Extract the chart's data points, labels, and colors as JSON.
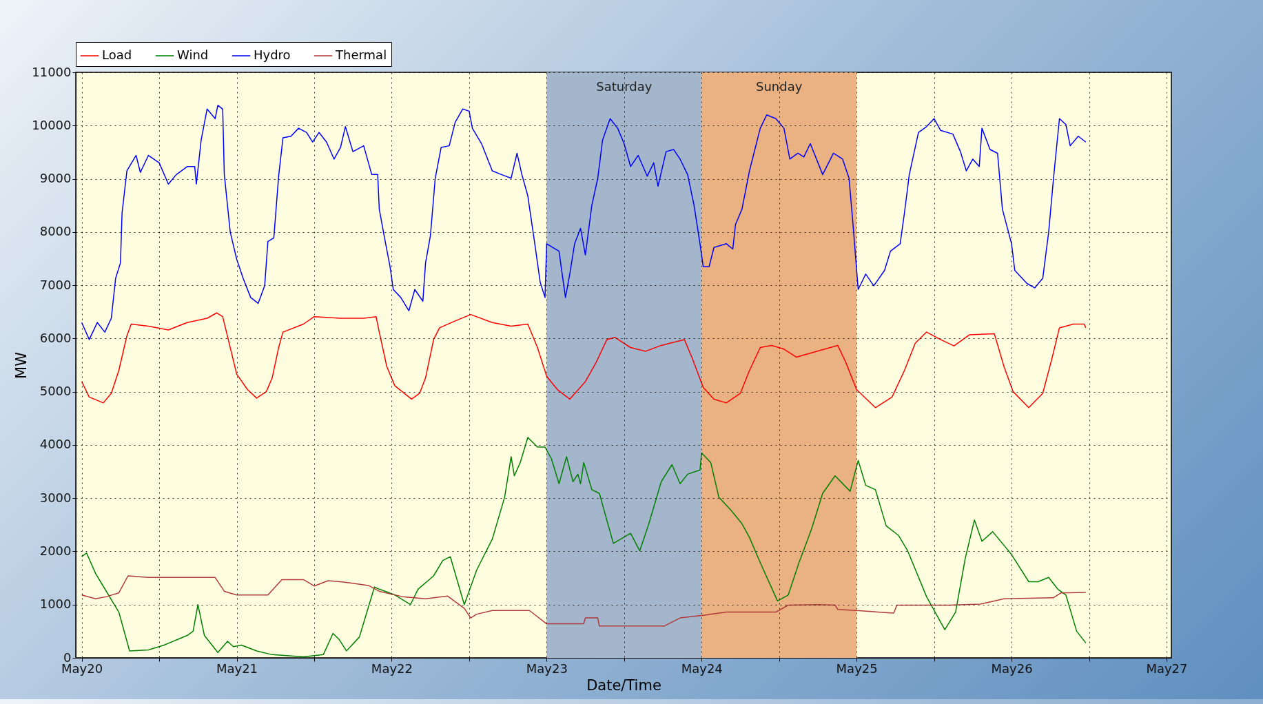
{
  "chart_data": {
    "type": "line",
    "xlabel": "Date/Time",
    "ylabel": "MW",
    "legend": "top left",
    "grid": true,
    "line_style": "solid",
    "marker": "none",
    "xlim": [
      "--05-19T23:05",
      "--05-27T00:45"
    ],
    "ylim": [
      0,
      11000
    ],
    "yticks": [
      0,
      1000,
      2000,
      3000,
      4000,
      5000,
      6000,
      7000,
      8000,
      9000,
      10000,
      11000
    ],
    "xticks": [
      {
        "value": "--05-20",
        "label": "May20"
      },
      {
        "value": "--05-20T12:00",
        "label": null
      },
      {
        "value": "--05-21",
        "label": "May21"
      },
      {
        "value": "--05-21T12:00",
        "label": null
      },
      {
        "value": "--05-22",
        "label": "May22"
      },
      {
        "value": "--05-22T12:00",
        "label": null
      },
      {
        "value": "--05-23",
        "label": "May23"
      },
      {
        "value": "--05-23T12:00",
        "label": null
      },
      {
        "value": "--05-24",
        "label": "May24"
      },
      {
        "value": "--05-24T12:00",
        "label": null
      },
      {
        "value": "--05-25",
        "label": "May25"
      },
      {
        "value": "--05-25T12:00",
        "label": null
      },
      {
        "value": "--05-26",
        "label": "May26"
      },
      {
        "value": "--05-26T12:00",
        "label": null
      },
      {
        "value": "--05-27",
        "label": "May27"
      }
    ],
    "bands": [
      {
        "axis": "x",
        "from": "--05-23",
        "to": "--05-24",
        "label": "Saturday",
        "color": "#a3b6cc"
      },
      {
        "axis": "x",
        "from": "--05-24",
        "to": "--05-25",
        "label": "Sunday",
        "color": "#eab183"
      }
    ],
    "series": [
      {
        "name": "Load",
        "color": "#ff0000",
        "x": [
          "--05-20T00:00",
          "--05-20T01:10",
          "--05-20T03:20",
          "--05-20T04:35",
          "--05-20T05:45",
          "--05-20T07:00",
          "--05-20T07:40",
          "--05-20T10:20",
          "--05-20T13:25",
          "--05-20T16:20",
          "--05-20T19:25",
          "--05-20T20:55",
          "--05-20T21:50",
          "--05-20T23:00",
          "--05-21T00:00",
          "--05-21T01:40",
          "--05-21T03:05",
          "--05-21T04:35",
          "--05-21T05:30",
          "--05-21T06:30",
          "--05-21T07:10",
          "--05-21T10:20",
          "--05-21T12:00",
          "--05-21T16:05",
          "--05-21T19:40",
          "--05-21T21:35",
          "--05-21T22:05",
          "--05-21T23:15",
          "--05-22T00:30",
          "--05-22T03:05",
          "--05-22T04:20",
          "--05-22T05:15",
          "--05-22T06:30",
          "--05-22T07:25",
          "--05-22T09:50",
          "--05-22T12:15",
          "--05-22T15:35",
          "--05-22T18:30",
          "--05-22T21:05",
          "--05-22T22:35",
          "--05-23T00:00",
          "--05-23T01:40",
          "--05-23T03:35",
          "--05-23T06:00",
          "--05-23T07:40",
          "--05-23T09:20",
          "--05-23T10:35",
          "--05-23T13:00",
          "--05-23T15:20",
          "--05-23T17:45",
          "--05-23T21:20",
          "--05-23T22:35",
          "--05-24T00:15",
          "--05-24T01:55",
          "--05-24T03:50",
          "--05-24T06:00",
          "--05-24T07:25",
          "--05-24T09:05",
          "--05-24T10:50",
          "--05-24T12:45",
          "--05-24T14:40",
          "--05-24T17:00",
          "--05-24T21:05",
          "--05-24T22:20",
          "--05-25T00:00",
          "--05-25T02:55",
          "--05-25T05:30",
          "--05-25T07:25",
          "--05-25T09:05",
          "--05-25T10:50",
          "--05-25T13:00",
          "--05-25T15:05",
          "--05-25T17:30",
          "--05-25T21:20",
          "--05-25T22:50",
          "--05-26T00:15",
          "--05-26T02:40",
          "--05-26T04:50",
          "--05-26T06:15",
          "--05-26T07:25",
          "--05-26T09:35",
          "--05-26T11:15",
          "--05-26T11:30"
        ],
        "values": [
          5190,
          4900,
          4790,
          4970,
          5400,
          6050,
          6270,
          6230,
          6160,
          6300,
          6380,
          6480,
          6410,
          5830,
          5330,
          5040,
          4880,
          5000,
          5260,
          5830,
          6120,
          6270,
          6410,
          6380,
          6380,
          6410,
          6120,
          5470,
          5110,
          4860,
          4970,
          5260,
          5980,
          6200,
          6330,
          6450,
          6300,
          6230,
          6270,
          5830,
          5290,
          5040,
          4860,
          5190,
          5550,
          5980,
          6020,
          5830,
          5760,
          5870,
          5980,
          5620,
          5080,
          4860,
          4790,
          4970,
          5400,
          5830,
          5870,
          5800,
          5650,
          5730,
          5870,
          5550,
          5040,
          4700,
          4900,
          5400,
          5910,
          6120,
          5980,
          5860,
          6070,
          6090,
          5470,
          5000,
          4700,
          4970,
          5620,
          6200,
          6270,
          6270,
          6200
        ]
      },
      {
        "name": "Wind",
        "color": "#008000",
        "x": [
          "--05-20T00:00",
          "--05-20T00:45",
          "--05-20T02:10",
          "--05-20T02:55",
          "--05-20T05:45",
          "--05-20T07:25",
          "--05-20T10:20",
          "--05-20T12:45",
          "--05-20T16:20",
          "--05-20T17:15",
          "--05-20T18:00",
          "--05-20T19:00",
          "--05-20T21:05",
          "--05-20T22:35",
          "--05-20T23:30",
          "--05-21T00:45",
          "--05-21T03:05",
          "--05-21T05:30",
          "--05-21T10:20",
          "--05-21T13:25",
          "--05-21T14:55",
          "--05-21T15:50",
          "--05-21T17:00",
          "--05-21T19:00",
          "--05-21T20:10",
          "--05-21T21:20",
          "--05-21T22:05",
          "--05-22T00:30",
          "--05-22T02:55",
          "--05-22T04:05",
          "--05-22T06:30",
          "--05-22T07:55",
          "--05-22T09:05",
          "--05-22T11:15",
          "--05-22T13:10",
          "--05-22T15:35",
          "--05-22T17:30",
          "--05-22T18:30",
          "--05-22T19:00",
          "--05-22T19:55",
          "--05-22T21:05",
          "--05-22T22:35",
          "--05-22T23:45",
          "--05-23T00:45",
          "--05-23T01:55",
          "--05-23T03:05",
          "--05-23T04:05",
          "--05-23T04:50",
          "--05-23T05:15",
          "--05-23T05:45",
          "--05-23T07:00",
          "--05-23T08:10",
          "--05-23T10:20",
          "--05-23T13:00",
          "--05-23T14:25",
          "--05-23T15:50",
          "--05-23T17:45",
          "--05-23T19:25",
          "--05-23T20:40",
          "--05-23T21:50",
          "--05-23T23:45",
          "--05-24T00:00",
          "--05-24T01:25",
          "--05-24T02:40",
          "--05-24T04:35",
          "--05-24T06:15",
          "--05-24T07:25",
          "--05-24T09:05",
          "--05-24T11:45",
          "--05-24T13:25",
          "--05-24T15:05",
          "--05-24T17:00",
          "--05-24T18:45",
          "--05-24T20:40",
          "--05-24T23:00",
          "--05-25T00:15",
          "--05-25T01:25",
          "--05-25T02:55",
          "--05-25T04:35",
          "--05-25T06:30",
          "--05-25T07:55",
          "--05-25T10:50",
          "--05-25T13:40",
          "--05-25T15:20",
          "--05-25T16:50",
          "--05-25T18:15",
          "--05-25T19:25",
          "--05-25T21:05",
          "--05-26T00:00",
          "--05-26T02:40",
          "--05-26T04:05",
          "--05-26T05:45",
          "--05-26T07:10",
          "--05-26T08:25",
          "--05-26T10:05",
          "--05-26T11:30"
        ],
        "values": [
          1900,
          1970,
          1580,
          1430,
          860,
          130,
          150,
          240,
          420,
          500,
          1000,
          420,
          100,
          310,
          210,
          240,
          130,
          60,
          20,
          60,
          460,
          350,
          130,
          390,
          860,
          1330,
          1290,
          1180,
          1000,
          1290,
          1540,
          1830,
          1900,
          1000,
          1650,
          2230,
          3020,
          3780,
          3420,
          3670,
          4140,
          3960,
          3960,
          3740,
          3270,
          3780,
          3310,
          3450,
          3270,
          3670,
          3160,
          3090,
          2150,
          2340,
          2010,
          2520,
          3310,
          3630,
          3270,
          3450,
          3530,
          3850,
          3670,
          3020,
          2770,
          2520,
          2260,
          1790,
          1070,
          1180,
          1790,
          2410,
          3090,
          3420,
          3130,
          3710,
          3240,
          3160,
          2480,
          2300,
          2010,
          1150,
          530,
          860,
          1870,
          2590,
          2190,
          2370,
          1940,
          1430,
          1430,
          1510,
          1290,
          1180,
          500,
          280
        ]
      },
      {
        "name": "Hydro",
        "color": "#0000ff",
        "x": [
          "--05-20T00:00",
          "--05-20T01:10",
          "--05-20T02:25",
          "--05-20T03:35",
          "--05-20T04:35",
          "--05-20T05:15",
          "--05-20T06:00",
          "--05-20T06:15",
          "--05-20T07:00",
          "--05-20T08:25",
          "--05-20T09:05",
          "--05-20T10:20",
          "--05-20T12:00",
          "--05-20T13:25",
          "--05-20T14:40",
          "--05-20T16:20",
          "--05-20T17:30",
          "--05-20T17:45",
          "--05-20T18:30",
          "--05-20T19:25",
          "--05-20T20:40",
          "--05-20T21:05",
          "--05-20T21:50",
          "--05-20T22:05",
          "--05-20T23:00",
          "--05-21T00:00",
          "--05-21T01:00",
          "--05-21T02:10",
          "--05-21T03:20",
          "--05-21T04:20",
          "--05-21T04:50",
          "--05-21T05:45",
          "--05-21T06:30",
          "--05-21T07:10",
          "--05-21T08:25",
          "--05-21T09:35",
          "--05-21T10:50",
          "--05-21T11:45",
          "--05-21T12:45",
          "--05-21T13:55",
          "--05-21T15:05",
          "--05-21T16:05",
          "--05-21T16:50",
          "--05-21T18:00",
          "--05-21T19:40",
          "--05-21T20:55",
          "--05-21T21:50",
          "--05-21T22:05",
          "--05-21T22:50",
          "--05-21T23:45",
          "--05-22T00:15",
          "--05-22T01:25",
          "--05-22T02:40",
          "--05-22T03:35",
          "--05-22T04:50",
          "--05-22T05:15",
          "--05-22T06:00",
          "--05-22T06:45",
          "--05-22T07:40",
          "--05-22T08:55",
          "--05-22T09:50",
          "--05-22T11:00",
          "--05-22T12:00",
          "--05-22T12:30",
          "--05-22T13:55",
          "--05-22T15:35",
          "--05-22T17:00",
          "--05-22T18:30",
          "--05-22T19:25",
          "--05-22T20:10",
          "--05-22T21:05",
          "--05-22T22:05",
          "--05-22T23:00",
          "--05-22T23:45",
          "--05-23T00:00",
          "--05-23T01:55",
          "--05-23T02:55",
          "--05-23T03:35",
          "--05-23T04:20",
          "--05-23T05:15",
          "--05-23T06:00",
          "--05-23T07:00",
          "--05-23T07:55",
          "--05-23T08:40",
          "--05-23T09:50",
          "--05-23T11:00",
          "--05-23T12:00",
          "--05-23T13:00",
          "--05-23T14:10",
          "--05-23T15:35",
          "--05-23T16:35",
          "--05-23T17:15",
          "--05-23T18:30",
          "--05-23T19:40",
          "--05-23T20:40",
          "--05-23T21:50",
          "--05-23T22:50",
          "--05-23T23:45",
          "--05-24T00:15",
          "--05-24T01:10",
          "--05-24T01:55",
          "--05-24T03:50",
          "--05-24T04:50",
          "--05-24T05:15",
          "--05-24T06:15",
          "--05-24T07:25",
          "--05-24T09:05",
          "--05-24T10:05",
          "--05-24T11:30",
          "--05-24T12:45",
          "--05-24T13:40",
          "--05-24T14:55",
          "--05-24T15:50",
          "--05-24T16:50",
          "--05-24T18:45",
          "--05-24T20:25",
          "--05-24T21:50",
          "--05-24T22:50",
          "--05-24T23:30",
          "--05-25T00:15",
          "--05-25T01:25",
          "--05-25T02:40",
          "--05-25T04:20",
          "--05-25T05:15",
          "--05-25T06:45",
          "--05-25T07:25",
          "--05-25T08:10",
          "--05-25T09:35",
          "--05-25T10:50",
          "--05-25T12:00",
          "--05-25T13:00",
          "--05-25T14:55",
          "--05-25T16:05",
          "--05-25T17:00",
          "--05-25T18:00",
          "--05-25T19:00",
          "--05-25T19:25",
          "--05-25T20:40",
          "--05-25T21:50",
          "--05-25T22:35",
          "--05-26T00:00",
          "--05-26T00:30",
          "--05-26T02:25",
          "--05-26T03:35",
          "--05-26T04:50",
          "--05-26T05:45",
          "--05-26T06:30",
          "--05-26T07:25",
          "--05-26T08:25",
          "--05-26T09:05",
          "--05-26T10:20",
          "--05-26T11:30"
        ],
        "values": [
          6300,
          5980,
          6300,
          6120,
          6380,
          7130,
          7420,
          8360,
          9150,
          9440,
          9120,
          9440,
          9300,
          8900,
          9080,
          9230,
          9230,
          8900,
          9730,
          10310,
          10130,
          10380,
          10310,
          9080,
          8000,
          7490,
          7130,
          6770,
          6660,
          6990,
          7820,
          7890,
          9050,
          9770,
          9800,
          9950,
          9870,
          9690,
          9870,
          9690,
          9370,
          9590,
          9980,
          9510,
          9620,
          9080,
          9080,
          8430,
          7930,
          7350,
          6920,
          6770,
          6520,
          6920,
          6700,
          7420,
          7930,
          9010,
          9590,
          9620,
          10060,
          10310,
          10270,
          9950,
          9660,
          9150,
          9080,
          9010,
          9480,
          9080,
          8680,
          7850,
          7060,
          6770,
          7780,
          7640,
          6770,
          7210,
          7780,
          8070,
          7570,
          8500,
          9010,
          9730,
          10130,
          9950,
          9660,
          9230,
          9440,
          9050,
          9300,
          8860,
          9510,
          9550,
          9370,
          9080,
          8500,
          7780,
          7350,
          7350,
          7710,
          7780,
          7680,
          8140,
          8430,
          9150,
          9950,
          10200,
          10130,
          9950,
          9370,
          9480,
          9410,
          9660,
          9080,
          9480,
          9370,
          9010,
          8070,
          6920,
          7210,
          6990,
          7280,
          7640,
          7780,
          8360,
          9080,
          9870,
          9980,
          10130,
          9910,
          9840,
          9510,
          9150,
          9370,
          9230,
          9950,
          9550,
          9480,
          8430,
          7780,
          7280,
          7030,
          6950,
          7130,
          8000,
          9010,
          10130,
          10020,
          9620,
          9800,
          9690
        ]
      },
      {
        "name": "Thermal",
        "color": "#b03a3a",
        "x": [
          "--05-20T00:00",
          "--05-20T02:10",
          "--05-20T03:50",
          "--05-20T05:45",
          "--05-20T07:10",
          "--05-20T10:20",
          "--05-20T16:20",
          "--05-20T20:40",
          "--05-20T22:05",
          "--05-21T00:00",
          "--05-21T04:50",
          "--05-21T07:00",
          "--05-21T10:20",
          "--05-21T12:00",
          "--05-21T14:10",
          "--05-21T16:05",
          "--05-21T20:25",
          "--05-21T22:05",
          "--05-22T01:40",
          "--05-22T05:15",
          "--05-22T08:40",
          "--05-22T11:15",
          "--05-22T12:15",
          "--05-22T13:10",
          "--05-22T15:35",
          "--05-22T21:20",
          "--05-23T00:00",
          "--05-23T05:45",
          "--05-23T06:00",
          "--05-23T07:55",
          "--05-23T08:10",
          "--05-23T18:15",
          "--05-23T20:40",
          "--05-24T00:15",
          "--05-24T03:50",
          "--05-24T11:30",
          "--05-24T13:25",
          "--05-24T18:00",
          "--05-24T20:40",
          "--05-24T21:05",
          "--05-25T00:00",
          "--05-25T05:45",
          "--05-25T06:15",
          "--05-25T14:25",
          "--05-25T19:10",
          "--05-25T22:50",
          "--05-26T06:30",
          "--05-26T07:40",
          "--05-26T11:30"
        ],
        "values": [
          1180,
          1110,
          1150,
          1220,
          1540,
          1510,
          1510,
          1510,
          1250,
          1180,
          1180,
          1470,
          1470,
          1350,
          1450,
          1430,
          1360,
          1250,
          1150,
          1110,
          1160,
          930,
          750,
          820,
          890,
          890,
          640,
          640,
          750,
          750,
          600,
          600,
          750,
          800,
          860,
          860,
          990,
          1000,
          990,
          910,
          890,
          840,
          990,
          990,
          1010,
          1110,
          1130,
          1220,
          1230
        ]
      }
    ]
  }
}
